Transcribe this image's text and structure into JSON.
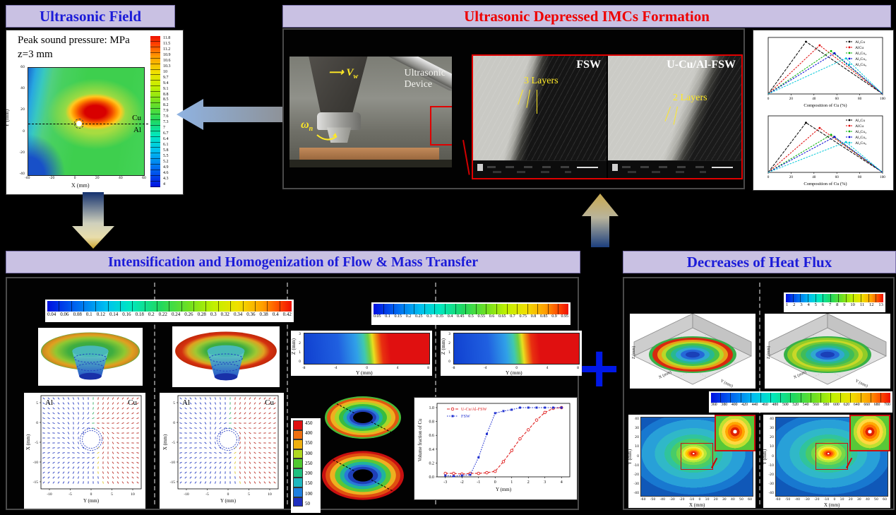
{
  "titles": {
    "ultrasonic_field": "Ultrasonic Field",
    "imc_formation": "Ultrasonic Depressed IMCs Formation",
    "flow_mass": "Intensification and Homogenization of Flow & Mass Transfer",
    "heat_flux": "Decreases of Heat Flux"
  },
  "colors": {
    "title_bg": "#c9c1e3",
    "title_blue": "#1c1cd8",
    "title_red": "#ee0000",
    "plus_blue": "#0018e8",
    "annotation_yellow": "#ffe926",
    "highlight_red": "#e00000"
  },
  "plus_sign": "+",
  "ultrasonic_field": {
    "heading1": "Peak sound pressure: MPa",
    "heading2": "z=3 mm",
    "colorbar_labels": [
      "11.8",
      "11.5",
      "11.2",
      "10.9",
      "10.6",
      "10.3",
      "10",
      "9.7",
      "9.4",
      "9.1",
      "8.8",
      "8.5",
      "8.2",
      "7.9",
      "7.6",
      "7.3",
      "7",
      "6.7",
      "6.4",
      "6.1",
      "5.8",
      "5.5",
      "5.2",
      "4.9",
      "4.6",
      "4.3",
      "4"
    ],
    "plot": {
      "xlabel": "X (mm)",
      "ylabel": "Y (mm)",
      "x_ticks": [
        "-40",
        "-20",
        "0",
        "20",
        "40",
        "60"
      ],
      "y_ticks": [
        "60",
        "40",
        "20",
        "0",
        "-20",
        "-40"
      ],
      "upper_region": "Cu",
      "lower_region": "Al"
    }
  },
  "imc": {
    "photo": {
      "speed_main": "V",
      "speed_sub": "w",
      "speed_arrow": "⟶",
      "omega_main": "ω",
      "omega_sub": "n",
      "device_line1": "Ultrasonic",
      "device_line2": "Device"
    },
    "sem_left": {
      "tag": "FSW",
      "note": "3 Layers"
    },
    "sem_right": {
      "tag": "U-Cu/Al-FSW",
      "note": "2 Layers"
    }
  },
  "flow": {
    "colorbar1_labels": [
      "0.04",
      "0.06",
      "0.08",
      "0.1",
      "0.12",
      "0.14",
      "0.16",
      "0.18",
      "0.2",
      "0.22",
      "0.24",
      "0.26",
      "0.28",
      "0.3",
      "0.32",
      "0.34",
      "0.36",
      "0.38",
      "0.4",
      "0.42"
    ],
    "colorbar2_labels": [
      "0.05",
      "0.1",
      "0.15",
      "0.2",
      "0.25",
      "0.3",
      "0.35",
      "0.4",
      "0.45",
      "0.5",
      "0.55",
      "0.6",
      "0.65",
      "0.7",
      "0.75",
      "0.8",
      "0.85",
      "0.9",
      "0.95"
    ],
    "donut_labels": [
      "450",
      "400",
      "350",
      "300",
      "250",
      "200",
      "150",
      "100",
      "50"
    ],
    "vector": {
      "xlabel": "Y (mm)",
      "ylabel": "X (mm)",
      "x_ticks": [
        "-10",
        "-5",
        "0",
        "5",
        "10"
      ],
      "y_ticks": [
        "5",
        "0",
        "-5",
        "-10",
        "-15"
      ],
      "left_region": "Al",
      "right_region": "Cu"
    },
    "cross": {
      "xlabel": "Y (mm)",
      "ylabel": "Z (mm)",
      "x_ticks": [
        "-8",
        "-4",
        "0",
        "4",
        "8"
      ],
      "y_ticks": [
        "3",
        "2",
        "1",
        "0"
      ]
    }
  },
  "heat": {
    "colorbar_small_labels": [
      "1",
      "2",
      "3",
      "4",
      "5",
      "6",
      "7",
      "8",
      "9",
      "10",
      "11",
      "12",
      "13"
    ],
    "colorbar_wide_labels": [
      "360",
      "380",
      "400",
      "420",
      "440",
      "460",
      "480",
      "500",
      "520",
      "540",
      "560",
      "580",
      "600",
      "620",
      "640",
      "660",
      "680",
      "700"
    ],
    "surface": {
      "xlabel": "X (mm)",
      "ylabel": "Y (mm)",
      "zlabel": "Z (mm)"
    },
    "contour": {
      "xlabel": "X (mm)",
      "ylabel": "Y (mm)",
      "x_ticks": [
        "-60",
        "-50",
        "-40",
        "-30",
        "-20",
        "-10",
        "0",
        "10",
        "20",
        "30",
        "40",
        "50",
        "60"
      ],
      "y_ticks": [
        "40",
        "30",
        "20",
        "10",
        "0",
        "-10",
        "-20",
        "-30",
        "-40"
      ]
    }
  },
  "chart_data": [
    {
      "id": "imc_composition_upper",
      "type": "line",
      "xlabel": "Composition of Cu (%)",
      "ylabel": "",
      "xlim": [
        0,
        100
      ],
      "x_ticks": [
        "0",
        "20",
        "40",
        "60",
        "80",
        "100"
      ],
      "legend_position": "top-right",
      "series": [
        {
          "name": "Al₂Cu",
          "color": "#000000",
          "points": [
            [
              0,
              0
            ],
            [
              33,
              1.0
            ],
            [
              100,
              0
            ]
          ]
        },
        {
          "name": "AlCu",
          "color": "#e00000",
          "points": [
            [
              0,
              0
            ],
            [
              45,
              0.93
            ],
            [
              100,
              0
            ]
          ]
        },
        {
          "name": "Al₃Cu₄",
          "color": "#00b000",
          "points": [
            [
              0,
              0
            ],
            [
              55,
              0.82
            ],
            [
              100,
              0
            ]
          ]
        },
        {
          "name": "Al₂Cu₃",
          "color": "#0000d0",
          "points": [
            [
              0,
              0
            ],
            [
              58,
              0.78
            ],
            [
              100,
              0
            ]
          ]
        },
        {
          "name": "Al₄Cu₉",
          "color": "#00c8d8",
          "points": [
            [
              0,
              0
            ],
            [
              68,
              0.68
            ],
            [
              100,
              0
            ]
          ]
        }
      ]
    },
    {
      "id": "imc_composition_lower",
      "type": "line",
      "xlabel": "Composition of Cu (%)",
      "ylabel": "",
      "xlim": [
        0,
        100
      ],
      "x_ticks": [
        "0",
        "20",
        "40",
        "60",
        "80",
        "100"
      ],
      "legend_position": "top-right",
      "series": [
        {
          "name": "Al₂Cu",
          "color": "#000000",
          "points": [
            [
              0,
              0
            ],
            [
              33,
              0.95
            ],
            [
              100,
              0
            ]
          ]
        },
        {
          "name": "AlCu",
          "color": "#e00000",
          "points": [
            [
              0,
              0
            ],
            [
              45,
              0.85
            ],
            [
              100,
              0
            ]
          ]
        },
        {
          "name": "Al₃Cu₄",
          "color": "#00b000",
          "points": [
            [
              0,
              0
            ],
            [
              55,
              0.72
            ],
            [
              100,
              0
            ]
          ]
        },
        {
          "name": "Al₂Cu₃",
          "color": "#0000d0",
          "points": [
            [
              0,
              0
            ],
            [
              58,
              0.68
            ],
            [
              100,
              0
            ]
          ]
        },
        {
          "name": "Al₄Cu₉",
          "color": "#00c8d8",
          "points": [
            [
              0,
              0
            ],
            [
              68,
              0.58
            ],
            [
              100,
              0
            ]
          ]
        }
      ]
    },
    {
      "id": "cu_volume_fraction",
      "type": "line",
      "xlabel": "Y (mm)",
      "ylabel": "Volume fraction of Cu",
      "xlim": [
        -3.5,
        4.5
      ],
      "ylim": [
        0,
        1
      ],
      "x_ticks": [
        "-3",
        "-2",
        "-1",
        "0",
        "1",
        "2",
        "3",
        "4"
      ],
      "y_ticks": [
        "1.0",
        "0.8",
        "0.6",
        "0.4",
        "0.2",
        "0.0"
      ],
      "series": [
        {
          "name": "U-Cu/Al-FSW",
          "color": "#e02020",
          "marker": "open-circle",
          "dash": "dashed",
          "x": [
            -3,
            -2.5,
            -2,
            -1.5,
            -1,
            -0.5,
            0,
            0.5,
            1,
            1.5,
            2,
            2.5,
            3,
            3.5,
            4
          ],
          "y": [
            0.05,
            0.05,
            0.04,
            0.05,
            0.05,
            0.06,
            0.08,
            0.22,
            0.38,
            0.55,
            0.68,
            0.82,
            0.93,
            0.99,
            1.0
          ]
        },
        {
          "name": "FSW",
          "color": "#2030d0",
          "marker": "filled-square",
          "dash": "dotted",
          "x": [
            -3,
            -2.5,
            -2,
            -1.5,
            -1,
            -0.5,
            0,
            0.5,
            1,
            1.5,
            2,
            2.5,
            3,
            3.5,
            4
          ],
          "y": [
            0.02,
            0.01,
            0.02,
            0.03,
            0.28,
            0.62,
            0.92,
            0.95,
            0.97,
            1.0,
            1.0,
            1.0,
            1.0,
            1.0,
            1.0
          ]
        }
      ]
    }
  ]
}
